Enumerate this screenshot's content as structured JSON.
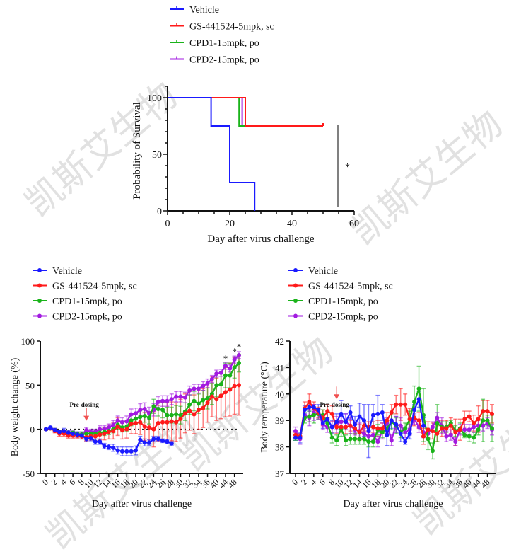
{
  "watermark": "凯斯艾生物",
  "legend_items": [
    {
      "name": "Vehicle",
      "color": "#1a1aff"
    },
    {
      "name": "GS-441524-5mpk, sc",
      "color": "#ff1a1a"
    },
    {
      "name": "CPD1-15mpk, po",
      "color": "#1ab31a"
    },
    {
      "name": "CPD2-15mpk, po",
      "color": "#a21ae0"
    }
  ],
  "chart_data": [
    {
      "type": "line",
      "subtype": "kaplan-meier",
      "title": "",
      "xlabel": "Day after virus challenge",
      "ylabel": "Probability of Survival",
      "xlim": [
        0,
        60
      ],
      "ylim": [
        0,
        100
      ],
      "xticks": [
        "0",
        "20",
        "40",
        "60"
      ],
      "yticks": [
        "0",
        "50",
        "100"
      ],
      "legend_position": "top",
      "significance": "*",
      "series": [
        {
          "name": "Vehicle",
          "steps": [
            [
              0,
              100
            ],
            [
              14,
              75
            ],
            [
              20,
              25
            ],
            [
              28,
              0
            ]
          ],
          "end": 28
        },
        {
          "name": "GS-441524-5mpk, sc",
          "steps": [
            [
              0,
              100
            ],
            [
              25,
              75
            ]
          ],
          "end": 50
        },
        {
          "name": "CPD1-15mpk, po",
          "steps": [
            [
              0,
              100
            ],
            [
              23,
              75
            ]
          ],
          "end": 25
        },
        {
          "name": "CPD2-15mpk, po",
          "steps": [
            [
              0,
              100
            ],
            [
              24,
              75
            ]
          ],
          "end": 25
        }
      ]
    },
    {
      "type": "line",
      "title": "",
      "xlabel": "Day after virus challenge",
      "ylabel": "Body weight change (%)",
      "ylim": [
        -50,
        100
      ],
      "yticks": [
        "-50",
        "0",
        "50",
        "100"
      ],
      "x": [
        0,
        1,
        2,
        3,
        4,
        5,
        6,
        7,
        8,
        9,
        10,
        11,
        12,
        13,
        14,
        15,
        16,
        17,
        18,
        19,
        20,
        21,
        22,
        23,
        24,
        25,
        26,
        27,
        28,
        29,
        30,
        31,
        32,
        33,
        34,
        35,
        36,
        37,
        38,
        39,
        40,
        41,
        42,
        43
      ],
      "xtick_labels": [
        [
          "0",
          0
        ],
        [
          "2",
          2
        ],
        [
          "4",
          4
        ],
        [
          "6",
          6
        ],
        [
          "8",
          8
        ],
        [
          "10",
          10
        ],
        [
          "12",
          12
        ],
        [
          "14",
          14
        ],
        [
          "16",
          16
        ],
        [
          "18",
          18
        ],
        [
          "20",
          20
        ],
        [
          "22",
          22
        ],
        [
          "24",
          24
        ],
        [
          "26",
          26
        ],
        [
          "28",
          28
        ],
        [
          "30",
          30
        ],
        [
          "32",
          32
        ],
        [
          "34",
          34
        ],
        [
          "36",
          36
        ],
        [
          "40",
          38
        ],
        [
          "44",
          40
        ],
        [
          "48",
          42
        ]
      ],
      "annotation": {
        "text": "Pre-dosing",
        "x": 9
      },
      "reference_line": 0,
      "stars": [
        {
          "x": 40,
          "y": 72,
          "text": "*"
        },
        {
          "x": 42,
          "y": 80,
          "text": "*"
        },
        {
          "x": 43,
          "y": 85,
          "text": "*"
        }
      ],
      "legend_position": "top-left",
      "series": [
        {
          "name": "Vehicle",
          "values": [
            0,
            2,
            -1,
            -3,
            -2,
            -4,
            -5,
            -6,
            -7,
            -11,
            -10,
            -14,
            -14,
            -19,
            -20,
            -21,
            -24,
            -25,
            -25,
            -25,
            -24,
            -12,
            -15,
            -15,
            -11,
            -11,
            -13,
            -14,
            -16,
            null,
            null,
            null,
            null,
            null,
            null,
            null,
            null,
            null,
            null,
            null,
            null,
            null,
            null,
            null
          ],
          "err": [
            1,
            1,
            2,
            2,
            3,
            3,
            3,
            3,
            4,
            3,
            3,
            3,
            3,
            3,
            3,
            4,
            4,
            5,
            5,
            5,
            5,
            4,
            4,
            3,
            3,
            3,
            2,
            2,
            2
          ]
        },
        {
          "name": "GS-441524-5mpk, sc",
          "values": [
            0,
            1,
            -2,
            -5,
            -5,
            -7,
            -7,
            -7,
            -8,
            -9,
            -8,
            -8,
            -6,
            -5,
            -3,
            -2,
            3,
            -1,
            0,
            6,
            7,
            8,
            3,
            2,
            0,
            7,
            8,
            8,
            9,
            8,
            12,
            18,
            21,
            17,
            22,
            24,
            30,
            37,
            34,
            38,
            42,
            45,
            49,
            50
          ],
          "err": [
            1,
            1,
            2,
            3,
            3,
            3,
            3,
            3,
            3,
            4,
            4,
            5,
            6,
            7,
            8,
            9,
            10,
            10,
            10,
            11,
            12,
            14,
            16,
            18,
            20,
            20,
            22,
            22,
            22,
            22,
            22,
            22,
            22,
            22,
            22,
            22,
            22,
            23,
            24,
            26,
            28,
            30,
            32,
            34
          ]
        },
        {
          "name": "CPD1-15mpk, po",
          "values": [
            0,
            1,
            -1,
            -3,
            -3,
            -4,
            -4,
            -5,
            -6,
            -5,
            -5,
            -5,
            -4,
            -3,
            -2,
            0,
            5,
            2,
            3,
            10,
            12,
            14,
            15,
            13,
            26,
            23,
            22,
            16,
            16,
            17,
            16,
            20,
            28,
            32,
            29,
            33,
            35,
            40,
            50,
            51,
            61,
            61,
            70,
            75
          ],
          "err": [
            1,
            1,
            2,
            2,
            2,
            2,
            2,
            2,
            3,
            3,
            3,
            3,
            3,
            4,
            4,
            4,
            5,
            5,
            5,
            6,
            6,
            7,
            7,
            7,
            8,
            8,
            9,
            9,
            9,
            10,
            10,
            10,
            11,
            11,
            11,
            11,
            12,
            12,
            13,
            13,
            14,
            14,
            12,
            10
          ]
        },
        {
          "name": "CPD2-15mpk, po",
          "values": [
            0,
            1,
            -1,
            -3,
            -3,
            -4,
            -4,
            -5,
            -6,
            -1,
            -3,
            -3,
            0,
            0,
            2,
            5,
            10,
            8,
            9,
            17,
            18,
            22,
            23,
            18,
            22,
            31,
            32,
            32,
            34,
            37,
            37,
            36,
            44,
            46,
            46,
            49,
            52,
            57,
            63,
            64,
            72,
            69,
            79,
            84
          ],
          "err": [
            1,
            1,
            2,
            2,
            2,
            2,
            2,
            2,
            2,
            3,
            3,
            3,
            4,
            4,
            4,
            5,
            5,
            5,
            6,
            6,
            6,
            7,
            7,
            7,
            7,
            6,
            6,
            6,
            6,
            6,
            6,
            6,
            5,
            5,
            5,
            5,
            5,
            4,
            4,
            4,
            4,
            4,
            4,
            4
          ]
        }
      ]
    },
    {
      "type": "line",
      "title": "",
      "xlabel": "Day after virus challenge",
      "ylabel": "Body temperature (°C)",
      "ylim": [
        37,
        42
      ],
      "yticks": [
        "37",
        "38",
        "39",
        "40",
        "41",
        "42"
      ],
      "x": [
        0,
        1,
        2,
        3,
        4,
        5,
        6,
        7,
        8,
        9,
        10,
        11,
        12,
        13,
        14,
        15,
        16,
        17,
        18,
        19,
        20,
        21,
        22,
        23,
        24,
        25,
        26,
        27,
        28,
        29,
        30,
        31,
        32,
        33,
        34,
        35,
        36,
        37,
        38,
        39,
        40,
        41,
        42,
        43
      ],
      "xtick_labels": [
        [
          "0",
          0
        ],
        [
          "2",
          2
        ],
        [
          "4",
          4
        ],
        [
          "6",
          6
        ],
        [
          "8",
          8
        ],
        [
          "10",
          10
        ],
        [
          "12",
          12
        ],
        [
          "14",
          14
        ],
        [
          "16",
          16
        ],
        [
          "18",
          18
        ],
        [
          "20",
          20
        ],
        [
          "22",
          22
        ],
        [
          "24",
          24
        ],
        [
          "26",
          26
        ],
        [
          "28",
          28
        ],
        [
          "30",
          30
        ],
        [
          "32",
          32
        ],
        [
          "34",
          34
        ],
        [
          "36",
          36
        ],
        [
          "40",
          38
        ],
        [
          "44",
          40
        ],
        [
          "48",
          42
        ]
      ],
      "annotation": {
        "text": "Pre-dosing",
        "x": 9
      },
      "legend_position": "top-left",
      "series": [
        {
          "name": "Vehicle",
          "values": [
            38.35,
            38.35,
            39.4,
            39.5,
            39.5,
            39.4,
            38.9,
            39.05,
            38.75,
            38.95,
            39.25,
            38.95,
            39.3,
            38.85,
            39.15,
            39.0,
            38.6,
            39.2,
            39.25,
            39.3,
            38.45,
            39.0,
            38.85,
            38.5,
            38.2,
            38.5,
            39.4,
            39.8,
            38.8,
            null,
            null,
            null,
            null,
            null,
            null,
            null,
            null,
            null,
            null,
            null,
            null,
            null,
            null,
            null
          ],
          "err": [
            0.1,
            0.2,
            0.15,
            0.15,
            0.1,
            0.2,
            0.2,
            0.3,
            0.25,
            0.3,
            0.5,
            0.3,
            0.25,
            0.3,
            0.5,
            0.6,
            1.0,
            0.4,
            0.7,
            0.3,
            0.4,
            0.3,
            0.3,
            0.3,
            0.1,
            0.2,
            0.2,
            0.3,
            0.3
          ]
        },
        {
          "name": "GS-441524-5mpk, sc",
          "values": [
            38.45,
            38.4,
            39.45,
            39.7,
            39.45,
            39.3,
            39.1,
            39.35,
            39.25,
            38.75,
            38.75,
            38.75,
            38.8,
            38.7,
            38.55,
            38.8,
            38.75,
            38.75,
            38.7,
            38.7,
            39.0,
            39.3,
            39.6,
            39.6,
            39.6,
            39.05,
            39.1,
            39.0,
            38.4,
            38.65,
            38.6,
            38.5,
            38.7,
            38.7,
            38.8,
            38.55,
            38.65,
            39.05,
            39.15,
            38.9,
            39.05,
            39.35,
            39.35,
            39.25
          ],
          "err": [
            0.1,
            0.1,
            0.25,
            0.3,
            0.25,
            0.2,
            0.3,
            0.25,
            0.3,
            0.25,
            0.2,
            0.25,
            0.2,
            0.2,
            0.3,
            0.2,
            0.2,
            0.2,
            0.3,
            0.2,
            0.3,
            0.3,
            0.35,
            0.6,
            0.4,
            0.4,
            0.3,
            0.3,
            0.3,
            0.3,
            0.3,
            0.3,
            0.3,
            0.3,
            0.3,
            0.5,
            0.4,
            0.3,
            0.2,
            0.3,
            0.5,
            0.4,
            0.4,
            0.35
          ]
        },
        {
          "name": "CPD1-15mpk, po",
          "values": [
            38.35,
            38.4,
            39.1,
            39.15,
            39.2,
            39.25,
            39.2,
            38.9,
            38.35,
            38.25,
            38.7,
            38.25,
            38.3,
            38.3,
            38.3,
            38.3,
            38.2,
            38.2,
            38.65,
            38.55,
            38.7,
            38.95,
            38.8,
            38.55,
            38.7,
            39.05,
            39.7,
            40.2,
            39.2,
            38.3,
            37.85,
            38.9,
            38.75,
            38.75,
            38.9,
            38.6,
            38.7,
            38.45,
            38.4,
            38.35,
            38.65,
            39.0,
            39.0,
            38.7
          ],
          "err": [
            0.1,
            0.1,
            0.2,
            0.2,
            0.3,
            0.2,
            0.2,
            0.2,
            0.2,
            0.2,
            0.3,
            0.2,
            0.2,
            0.2,
            0.2,
            0.2,
            0.2,
            0.2,
            0.2,
            0.2,
            0.2,
            0.3,
            0.3,
            0.2,
            0.2,
            0.3,
            0.6,
            0.85,
            1.0,
            0.4,
            0.3,
            0.7,
            0.2,
            0.2,
            0.1,
            0.2,
            0.2,
            0.1,
            0.2,
            0.2,
            0.2,
            0.8,
            0.2,
            0.5
          ]
        },
        {
          "name": "CPD2-15mpk, po",
          "values": [
            38.6,
            38.3,
            39.2,
            39.1,
            39.3,
            39.25,
            38.85,
            38.75,
            38.75,
            38.85,
            38.95,
            38.95,
            38.8,
            38.65,
            38.6,
            38.5,
            38.4,
            38.45,
            38.2,
            38.6,
            38.9,
            38.25,
            38.85,
            38.8,
            38.55,
            38.65,
            39.05,
            38.75,
            38.55,
            38.5,
            38.75,
            39.1,
            38.8,
            38.4,
            38.45,
            38.2,
            38.65,
            38.65,
            38.65,
            38.75,
            38.8,
            38.8,
            38.9,
            38.65
          ],
          "err": [
            0.15,
            0.2,
            0.2,
            0.3,
            0.3,
            0.2,
            0.2,
            0.2,
            0.2,
            0.3,
            0.2,
            0.3,
            0.3,
            0.2,
            0.3,
            0.2,
            0.2,
            0.2,
            0.2,
            0.3,
            0.2,
            0.2,
            0.3,
            0.3,
            0.2,
            0.2,
            0.2,
            0.2,
            0.2,
            0.2,
            0.2,
            0.2,
            0.3,
            0.2,
            0.2,
            0.15,
            0.2,
            0.2,
            0.2,
            0.2,
            0.2,
            0.2,
            0.2,
            0.2
          ]
        }
      ]
    }
  ]
}
